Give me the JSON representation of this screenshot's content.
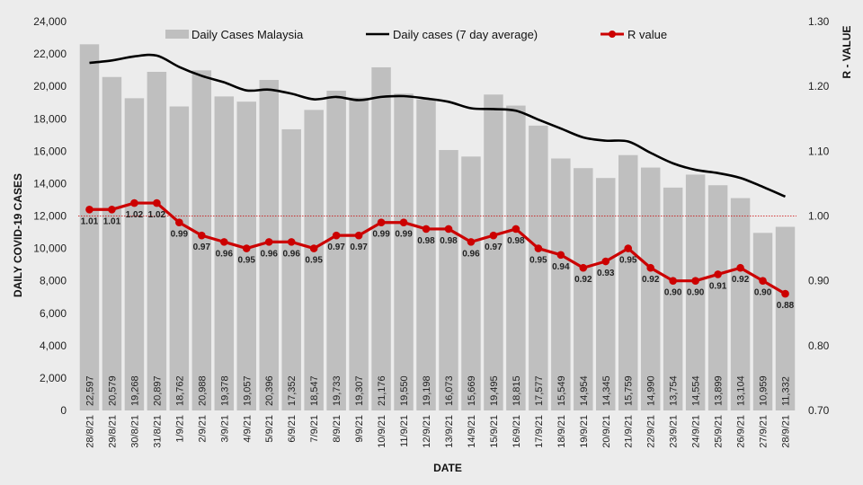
{
  "chart_data": {
    "type": "bar",
    "title": "",
    "xlabel": "DATE",
    "ylabel": "DAILY COVID-19 CASES",
    "y2label": "R - VALUE",
    "ylim": [
      0,
      24000
    ],
    "y_ticks": [
      "0",
      "2,000",
      "4,000",
      "6,000",
      "8,000",
      "10,000",
      "12,000",
      "14,000",
      "16,000",
      "18,000",
      "20,000",
      "22,000",
      "24,000"
    ],
    "y2lim": [
      0.7,
      1.3
    ],
    "y2_ticks": [
      "0.70",
      "0.80",
      "0.90",
      "1.00",
      "1.10",
      "1.20",
      "1.30"
    ],
    "reference_line": 1.0,
    "categories": [
      "28/8/21",
      "29/8/21",
      "30/8/21",
      "31/8/21",
      "1/9/21",
      "2/9/21",
      "3/9/21",
      "4/9/21",
      "5/9/21",
      "6/9/21",
      "7/9/21",
      "8/9/21",
      "9/9/21",
      "10/9/21",
      "11/9/21",
      "12/9/21",
      "13/9/21",
      "14/9/21",
      "15/9/21",
      "16/9/21",
      "17/9/21",
      "18/9/21",
      "19/9/21",
      "20/9/21",
      "21/9/21",
      "22/9/21",
      "23/9/21",
      "24/9/21",
      "25/9/21",
      "26/9/21",
      "27/9/21",
      "28/9/21"
    ],
    "series": [
      {
        "name": "Daily Cases Malaysia",
        "kind": "bar",
        "axis": "left",
        "color": "#bfbfbf",
        "values": [
          22597,
          20579,
          19268,
          20897,
          18762,
          20988,
          19378,
          19057,
          20396,
          17352,
          18547,
          19733,
          19307,
          21176,
          19550,
          19198,
          16073,
          15669,
          19495,
          18815,
          17577,
          15549,
          14954,
          14345,
          15759,
          14990,
          13754,
          14554,
          13899,
          13104,
          10959,
          11332
        ],
        "labels": [
          "22,597",
          "20,579",
          "19,268",
          "20,897",
          "18,762",
          "20,988",
          "19,378",
          "19,057",
          "20,396",
          "17,352",
          "18,547",
          "19,733",
          "19,307",
          "21,176",
          "19,550",
          "19,198",
          "16,073",
          "15,669",
          "19,495",
          "18,815",
          "17,577",
          "15,549",
          "14,954",
          "14,345",
          "15,759",
          "14,990",
          "13,754",
          "14,554",
          "13,899",
          "13,104",
          "10,959",
          "11,332"
        ]
      },
      {
        "name": "Daily cases (7 day average)",
        "kind": "line",
        "axis": "left",
        "color": "#000000",
        "values": [
          21450,
          21600,
          21850,
          21900,
          21200,
          20650,
          20250,
          19750,
          19800,
          19550,
          19200,
          19350,
          19150,
          19350,
          19400,
          19250,
          19050,
          18650,
          18600,
          18500,
          17950,
          17400,
          16850,
          16650,
          16600,
          15900,
          15250,
          14850,
          14650,
          14350,
          13800,
          13200
        ]
      },
      {
        "name": "R value",
        "kind": "line",
        "axis": "right",
        "color": "#cc0000",
        "values": [
          1.01,
          1.01,
          1.02,
          1.02,
          0.99,
          0.97,
          0.96,
          0.95,
          0.96,
          0.96,
          0.95,
          0.97,
          0.97,
          0.99,
          0.99,
          0.98,
          0.98,
          0.96,
          0.97,
          0.98,
          0.95,
          0.94,
          0.92,
          0.93,
          0.95,
          0.92,
          0.9,
          0.9,
          0.91,
          0.92,
          0.9,
          0.88
        ],
        "labels": [
          "1.01",
          "1.01",
          "1.02",
          "1.02",
          "0.99",
          "0.97",
          "0.96",
          "0.95",
          "0.96",
          "0.96",
          "0.95",
          "0.97",
          "0.97",
          "0.99",
          "0.99",
          "0.98",
          "0.98",
          "0.96",
          "0.97",
          "0.98",
          "0.95",
          "0.94",
          "0.92",
          "0.93",
          "0.95",
          "0.92",
          "0.90",
          "0.90",
          "0.91",
          "0.92",
          "0.90",
          "0.88"
        ]
      }
    ],
    "legend": {
      "placement": "top",
      "items": [
        "Daily Cases Malaysia",
        "Daily cases (7 day average)",
        "R value"
      ]
    }
  }
}
